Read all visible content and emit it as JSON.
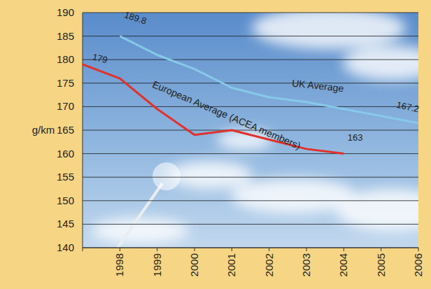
{
  "chart_data": {
    "type": "line",
    "categories": [
      null,
      "1998",
      "1999",
      "2000",
      "2001",
      "2002",
      "2003",
      "2004",
      "2005",
      "2006"
    ],
    "series": [
      {
        "name": "European Average (ACEA members)",
        "color": "#e2302a",
        "values": [
          179,
          176,
          169.5,
          164,
          165,
          163,
          161,
          160,
          null,
          null
        ]
      },
      {
        "name": "UK Average",
        "color": "#86c9e8",
        "values": [
          null,
          185,
          181,
          178,
          174,
          172,
          171,
          169.5,
          168,
          166.5
        ]
      }
    ],
    "y_label": "g/km",
    "ylim": [
      140,
      190
    ],
    "yticks": [
      140,
      145,
      150,
      155,
      160,
      165,
      170,
      175,
      180,
      185,
      190
    ],
    "grid": true,
    "annotations": [
      "189.8",
      "179",
      "163",
      "167.2"
    ]
  }
}
